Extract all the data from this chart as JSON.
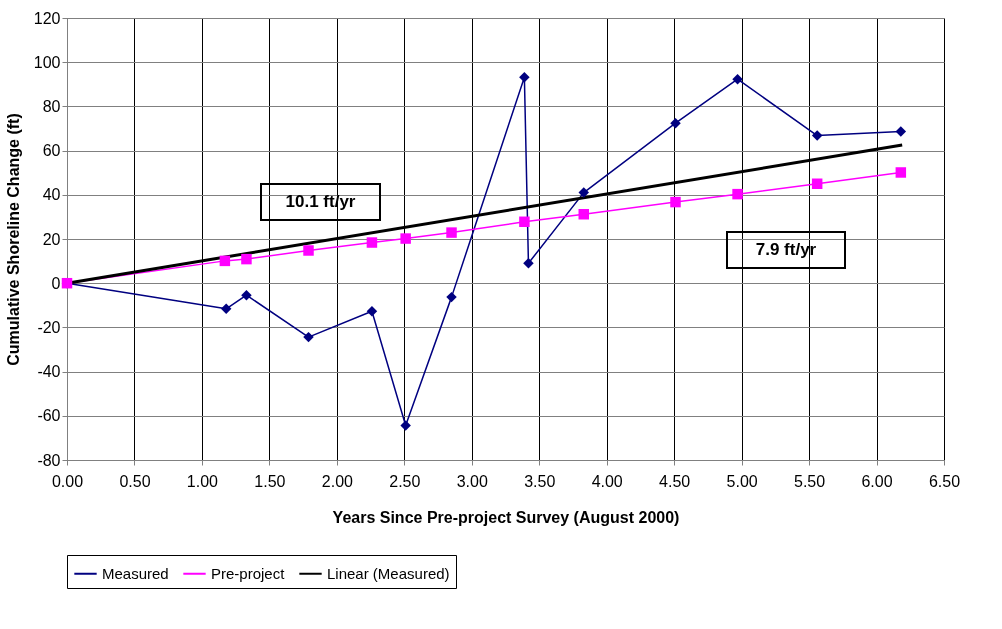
{
  "chart_data": {
    "type": "line",
    "xlabel": "Years Since Pre-project Survey (August 2000)",
    "ylabel": "Cumulative Shoreline Change (ft)",
    "series": [
      {
        "name": "Measured",
        "color": "#000080",
        "marker": "diamond",
        "x": [
          0,
          1.18,
          1.33,
          1.79,
          2.26,
          2.51,
          2.85,
          3.39,
          3.42,
          3.83,
          4.51,
          4.97,
          5.56,
          6.18
        ],
        "values": [
          0,
          -11.6,
          -5.4,
          -24.4,
          -12.7,
          -64.4,
          -6.3,
          93.2,
          9.0,
          41.0,
          72.4,
          92.3,
          66.8,
          68.6
        ]
      },
      {
        "name": "Pre-project",
        "color": "#ff00ff",
        "marker": "square",
        "x": [
          0,
          1.17,
          1.33,
          1.79,
          2.26,
          2.51,
          2.85,
          3.39,
          3.83,
          4.51,
          4.97,
          5.56,
          6.18
        ],
        "values": [
          0,
          10.1,
          10.9,
          14.8,
          18.4,
          20.2,
          22.9,
          27.8,
          31.2,
          36.7,
          40.3,
          45.0,
          50.1
        ]
      },
      {
        "name": "Linear (Measured)",
        "color": "#000000",
        "marker": "none",
        "x": [
          0,
          6.19
        ],
        "values": [
          0,
          62.5
        ]
      }
    ],
    "annotations": [
      "10.1 ft/yr",
      "7.9 ft/yr"
    ],
    "xlim": [
      0,
      6.5
    ],
    "ylim": [
      -80,
      120
    ],
    "xticks": [
      {
        "value": 0,
        "label": "0.00"
      },
      {
        "value": 0.5,
        "label": "0.50"
      },
      {
        "value": 1,
        "label": "1.00"
      },
      {
        "value": 1.5,
        "label": "1.50"
      },
      {
        "value": 2,
        "label": "2.00"
      },
      {
        "value": 2.5,
        "label": "2.50"
      },
      {
        "value": 3,
        "label": "3.00"
      },
      {
        "value": 3.5,
        "label": "3.50"
      },
      {
        "value": 4,
        "label": "4.00"
      },
      {
        "value": 4.5,
        "label": "4.50"
      },
      {
        "value": 5,
        "label": "5.00"
      },
      {
        "value": 5.5,
        "label": "5.50"
      },
      {
        "value": 6,
        "label": "6.00"
      },
      {
        "value": 6.5,
        "label": "6.50"
      }
    ],
    "yticks": [
      -80,
      -60,
      -40,
      -20,
      0,
      20,
      40,
      60,
      80,
      100,
      120
    ],
    "grid": true,
    "legend": "bottom",
    "line_style": "solid"
  }
}
